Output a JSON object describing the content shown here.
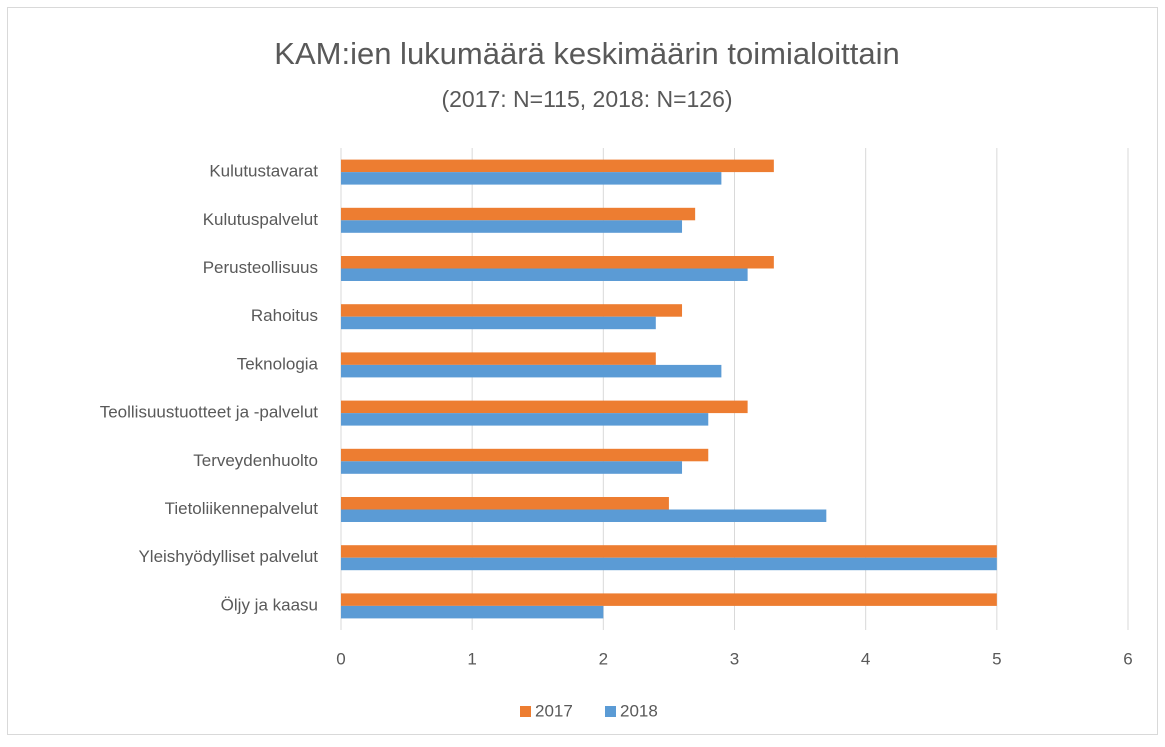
{
  "chart_data": {
    "type": "hbar",
    "title": "KAM:ien lukumäärä keskimäärin toimialoittain",
    "subtitle": "(2017: N=115, 2018: N=126)",
    "categories": [
      "Kulutustavarat",
      "Kulutuspalvelut",
      "Perusteollisuus",
      "Rahoitus",
      "Teknologia",
      "Teollisuustuotteet ja -palvelut",
      "Terveydenhuolto",
      "Tietoliikennepalvelut",
      "Yleishyödylliset palvelut",
      "Öljy ja kaasu"
    ],
    "series": [
      {
        "name": "2017",
        "color": "#ed7d31",
        "values": [
          3.3,
          2.7,
          3.3,
          2.6,
          2.4,
          3.1,
          2.8,
          2.5,
          5,
          5
        ]
      },
      {
        "name": "2018",
        "color": "#5b9bd5",
        "values": [
          2.9,
          2.6,
          3.1,
          2.4,
          2.9,
          2.8,
          2.6,
          3.7,
          5,
          2
        ]
      }
    ],
    "xlim": [
      0,
      6
    ],
    "xticks": [
      0,
      1,
      2,
      3,
      4,
      5,
      6
    ],
    "grid": true,
    "legend": "bottom"
  }
}
